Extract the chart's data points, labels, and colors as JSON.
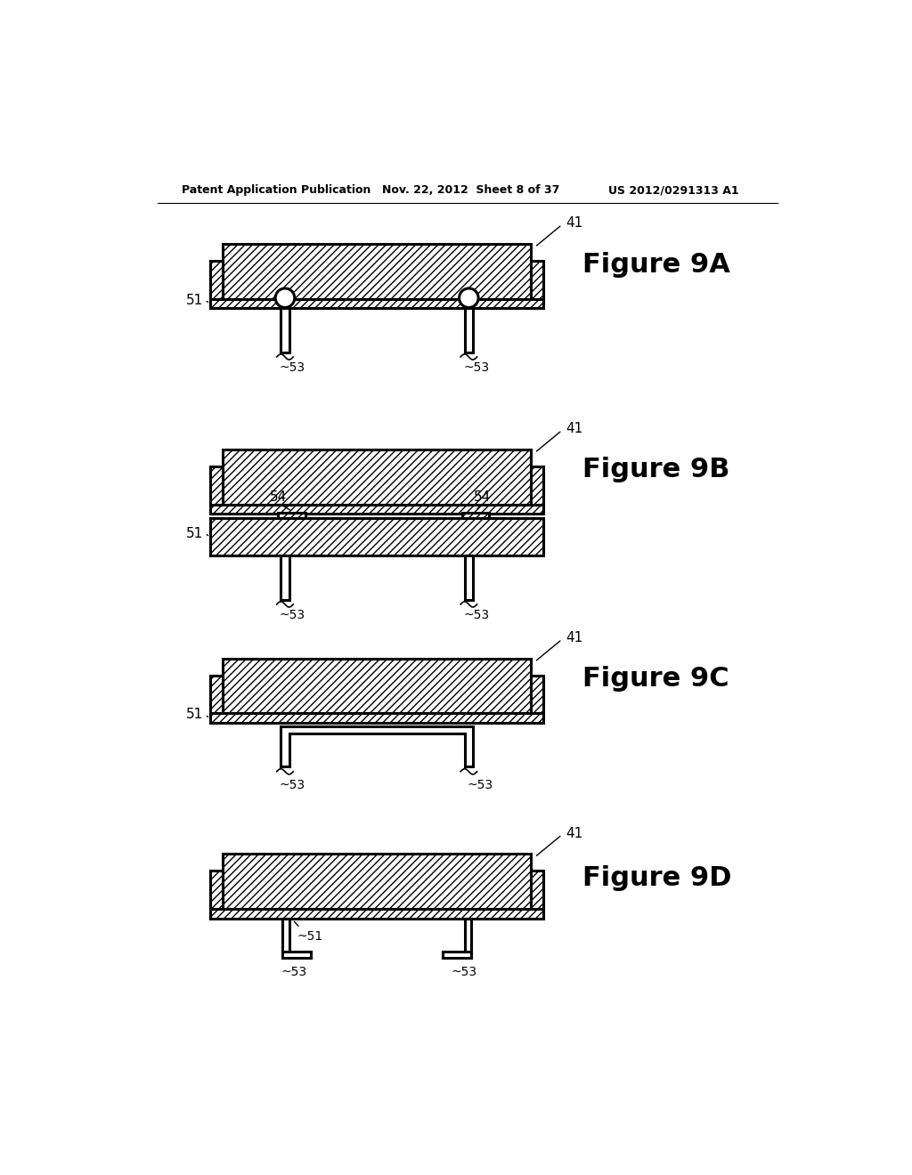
{
  "header_left": "Patent Application Publication",
  "header_mid": "Nov. 22, 2012  Sheet 8 of 37",
  "header_right": "US 2012/0291313 A1",
  "figures": [
    "Figure 9A",
    "Figure 9B",
    "Figure 9C",
    "Figure 9D"
  ],
  "bg_color": "#ffffff",
  "line_color": "#000000"
}
